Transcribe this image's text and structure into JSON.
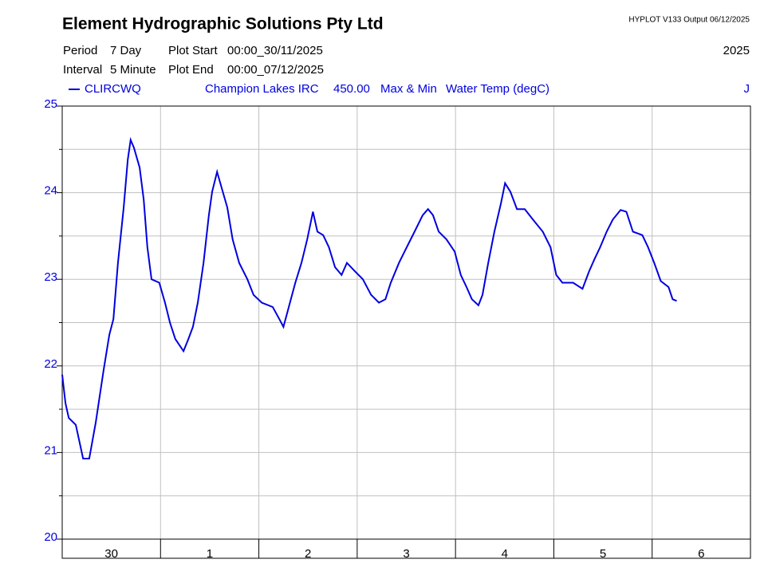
{
  "header": {
    "title": "Element Hydrographic Solutions Pty Ltd",
    "version": "HYPLOT V133  Output 06/12/2025",
    "period_label": "Period",
    "period": "7 Day",
    "start_label": "Plot Start",
    "start": "00:00_30/11/2025",
    "interval_label": "Interval",
    "interval": "5 Minute",
    "end_label": "Plot End",
    "end": "00:00_07/12/2025",
    "year": "2025"
  },
  "chart_data": {
    "type": "line",
    "legend": {
      "site_name": "Champion Lakes IRC",
      "variable_code": "450.00",
      "stat": "Max & Min",
      "variable": "Water Temp (degC)",
      "quality": "J"
    },
    "xlim": [
      0,
      168
    ],
    "xticks": [
      0,
      24,
      48,
      72,
      96,
      120,
      144,
      168
    ],
    "day_labels": [
      "30",
      "1",
      "2",
      "3",
      "4",
      "5",
      "6"
    ],
    "ylim": [
      20,
      25
    ],
    "yticks": [
      20,
      21,
      22,
      23,
      24,
      25
    ],
    "y_minor_ticks": [
      20.5,
      21.5,
      22.5,
      23.5,
      24.5
    ],
    "grid": true,
    "series": [
      {
        "name": "CLIRCWQ",
        "color": "#0000e0",
        "x": [
          0,
          0.8,
          1.6,
          3.3,
          5.1,
          6.6,
          8.2,
          10.1,
          11.5,
          12.5,
          13.6,
          15.0,
          16.0,
          16.7,
          17.5,
          18.9,
          19.9,
          20.8,
          21.8,
          23.7,
          25.1,
          26.3,
          27.6,
          29.6,
          30.8,
          31.9,
          33.1,
          34.5,
          35.8,
          36.6,
          37.8,
          38.9,
          40.3,
          41.6,
          43.2,
          45.2,
          46.7,
          48.7,
          51.4,
          53.0,
          54.0,
          55.3,
          56.9,
          58.4,
          59.8,
          61.2,
          62.3,
          63.7,
          65.1,
          66.6,
          68.2,
          69.5,
          71.5,
          73.4,
          75.4,
          77.3,
          78.9,
          80.2,
          82.2,
          84.1,
          86.0,
          88.0,
          89.3,
          90.5,
          91.9,
          93.8,
          95.8,
          97.3,
          98.7,
          100.0,
          101.6,
          102.6,
          104.0,
          105.5,
          107.1,
          108.1,
          109.4,
          111.0,
          112.9,
          114.9,
          117.3,
          119.2,
          120.6,
          122.1,
          124.7,
          127.0,
          128.6,
          129.9,
          131.3,
          132.9,
          134.4,
          136.3,
          137.7,
          139.3,
          141.6,
          143.0,
          144.5,
          146.1,
          148.0,
          149.0,
          150.0
        ],
        "values": [
          21.9,
          21.57,
          21.4,
          21.32,
          20.93,
          20.93,
          21.35,
          21.95,
          22.36,
          22.54,
          23.19,
          23.83,
          24.38,
          24.61,
          24.52,
          24.29,
          23.92,
          23.37,
          23.0,
          22.96,
          22.73,
          22.5,
          22.31,
          22.17,
          22.31,
          22.45,
          22.73,
          23.19,
          23.74,
          24.01,
          24.24,
          24.06,
          23.83,
          23.46,
          23.19,
          23.0,
          22.82,
          22.73,
          22.68,
          22.54,
          22.45,
          22.68,
          22.96,
          23.19,
          23.46,
          23.78,
          23.55,
          23.51,
          23.37,
          23.14,
          23.05,
          23.19,
          23.09,
          23.0,
          22.82,
          22.73,
          22.77,
          22.96,
          23.19,
          23.37,
          23.55,
          23.74,
          23.81,
          23.74,
          23.55,
          23.46,
          23.32,
          23.05,
          22.91,
          22.77,
          22.7,
          22.82,
          23.19,
          23.55,
          23.88,
          24.11,
          24.01,
          23.81,
          23.81,
          23.69,
          23.55,
          23.37,
          23.05,
          22.96,
          22.96,
          22.89,
          23.09,
          23.23,
          23.37,
          23.55,
          23.69,
          23.8,
          23.78,
          23.55,
          23.51,
          23.37,
          23.19,
          22.98,
          22.91,
          22.77,
          22.75
        ]
      }
    ]
  }
}
